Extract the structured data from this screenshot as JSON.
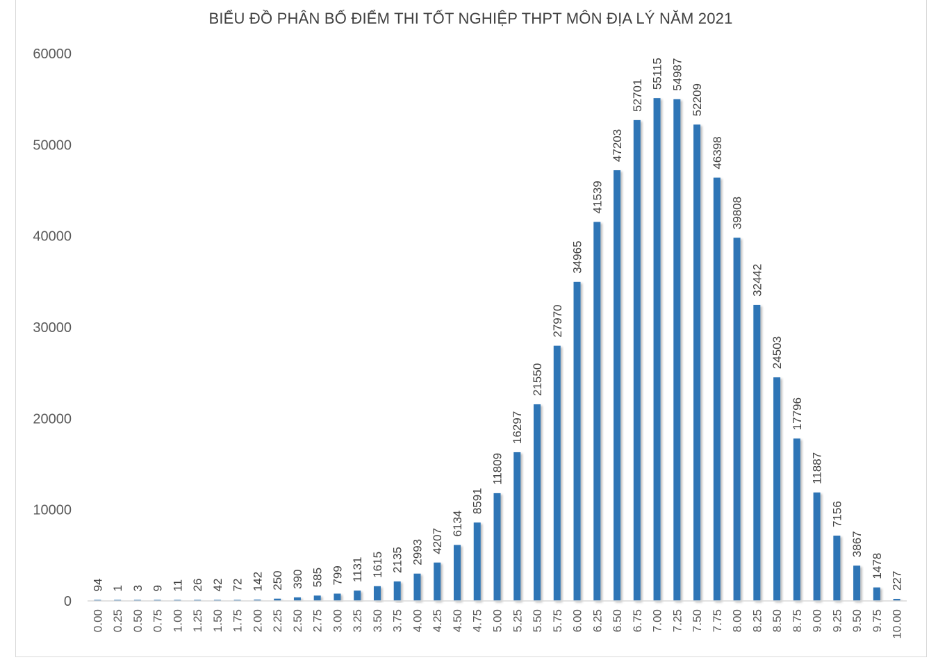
{
  "chart_data": {
    "type": "bar",
    "title": "BIỂU ĐỒ PHÂN BỐ ĐIỂM THI TỐT NGHIỆP THPT MÔN ĐỊA LÝ NĂM 2021",
    "xlabel": "",
    "ylabel": "",
    "ylim": [
      0,
      60000
    ],
    "yticks": [
      "0",
      "10000",
      "20000",
      "30000",
      "40000",
      "50000",
      "60000"
    ],
    "grid": false,
    "legend": "none",
    "bar_color": "#2e75b6",
    "categories": [
      "0.00",
      "0.25",
      "0.50",
      "0.75",
      "1.00",
      "1.25",
      "1.50",
      "1.75",
      "2.00",
      "2.25",
      "2.50",
      "2.75",
      "3.00",
      "3.25",
      "3.50",
      "3.75",
      "4.00",
      "4.25",
      "4.50",
      "4.75",
      "5.00",
      "5.25",
      "5.50",
      "5.75",
      "6.00",
      "6.25",
      "6.50",
      "6.75",
      "7.00",
      "7.25",
      "7.50",
      "7.75",
      "8.00",
      "8.25",
      "8.50",
      "8.75",
      "9.00",
      "9.25",
      "9.50",
      "9.75",
      "10.00"
    ],
    "values": [
      94,
      1,
      3,
      9,
      11,
      26,
      42,
      72,
      142,
      250,
      390,
      585,
      799,
      1131,
      1615,
      2135,
      2993,
      4207,
      6134,
      8591,
      11809,
      16297,
      21550,
      27970,
      34965,
      41539,
      47203,
      52701,
      55115,
      54987,
      52209,
      46398,
      39808,
      32442,
      24503,
      17796,
      11887,
      7156,
      3867,
      1478,
      227
    ]
  }
}
